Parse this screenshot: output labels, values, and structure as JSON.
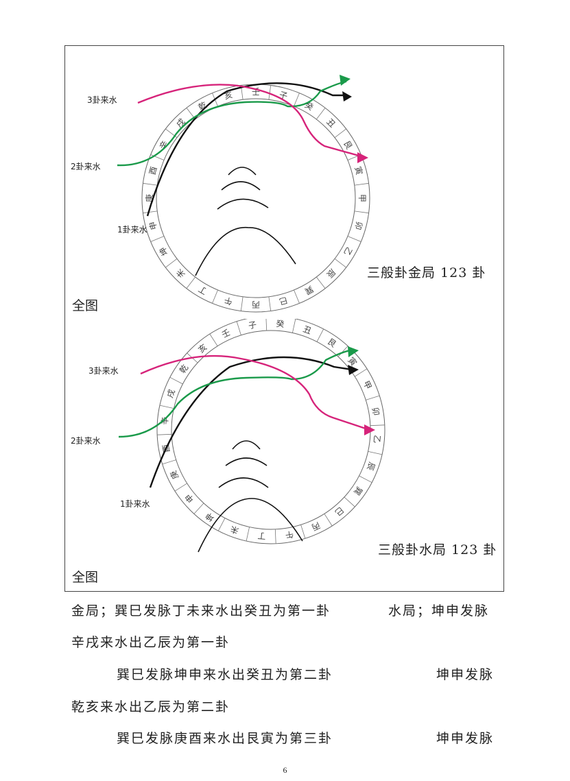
{
  "panels": [
    {
      "caption": "三般卦金局 123 卦",
      "full_label": "全图",
      "ring_chars": [
        "辛",
        "戌",
        "乾",
        "亥",
        "壬",
        "子",
        "癸",
        "丑",
        "艮",
        "寅",
        "甲",
        "卯",
        "乙",
        "辰",
        "巽",
        "巳",
        "丙",
        "午",
        "丁",
        "未",
        "坤",
        "申",
        "庚",
        "酉"
      ],
      "water_labels": [
        "3卦来水",
        "2卦来水",
        "1卦来水"
      ]
    },
    {
      "caption": "三般卦水局 123 卦",
      "full_label": "全图",
      "ring_chars": [
        "子",
        "癸",
        "丑",
        "艮",
        "寅",
        "甲",
        "卯",
        "乙",
        "辰",
        "巽",
        "巳",
        "丙",
        "午",
        "丁",
        "未",
        "坤",
        "申",
        "庚",
        "酉",
        "辛",
        "戌",
        "乾",
        "亥",
        "壬"
      ],
      "water_labels": [
        "3卦来水",
        "2卦来水",
        "1卦来水"
      ]
    }
  ],
  "colors": {
    "line3": "#d6237a",
    "line2": "#1a9a4a",
    "line1": "#111111",
    "ring": "#666666"
  },
  "text_lines": [
    "金局；巽巳发脉丁未来水出癸丑为第一卦",
    "水局；坤申发脉",
    "辛戌来水出乙辰为第一卦",
    "巽巳发脉坤申来水出癸丑为第二卦",
    "坤申发脉",
    "乾亥来水出乙辰为第二卦",
    "巽巳发脉庚酉来水出艮寅为第三卦",
    "坤申发脉"
  ],
  "page_number": "6"
}
